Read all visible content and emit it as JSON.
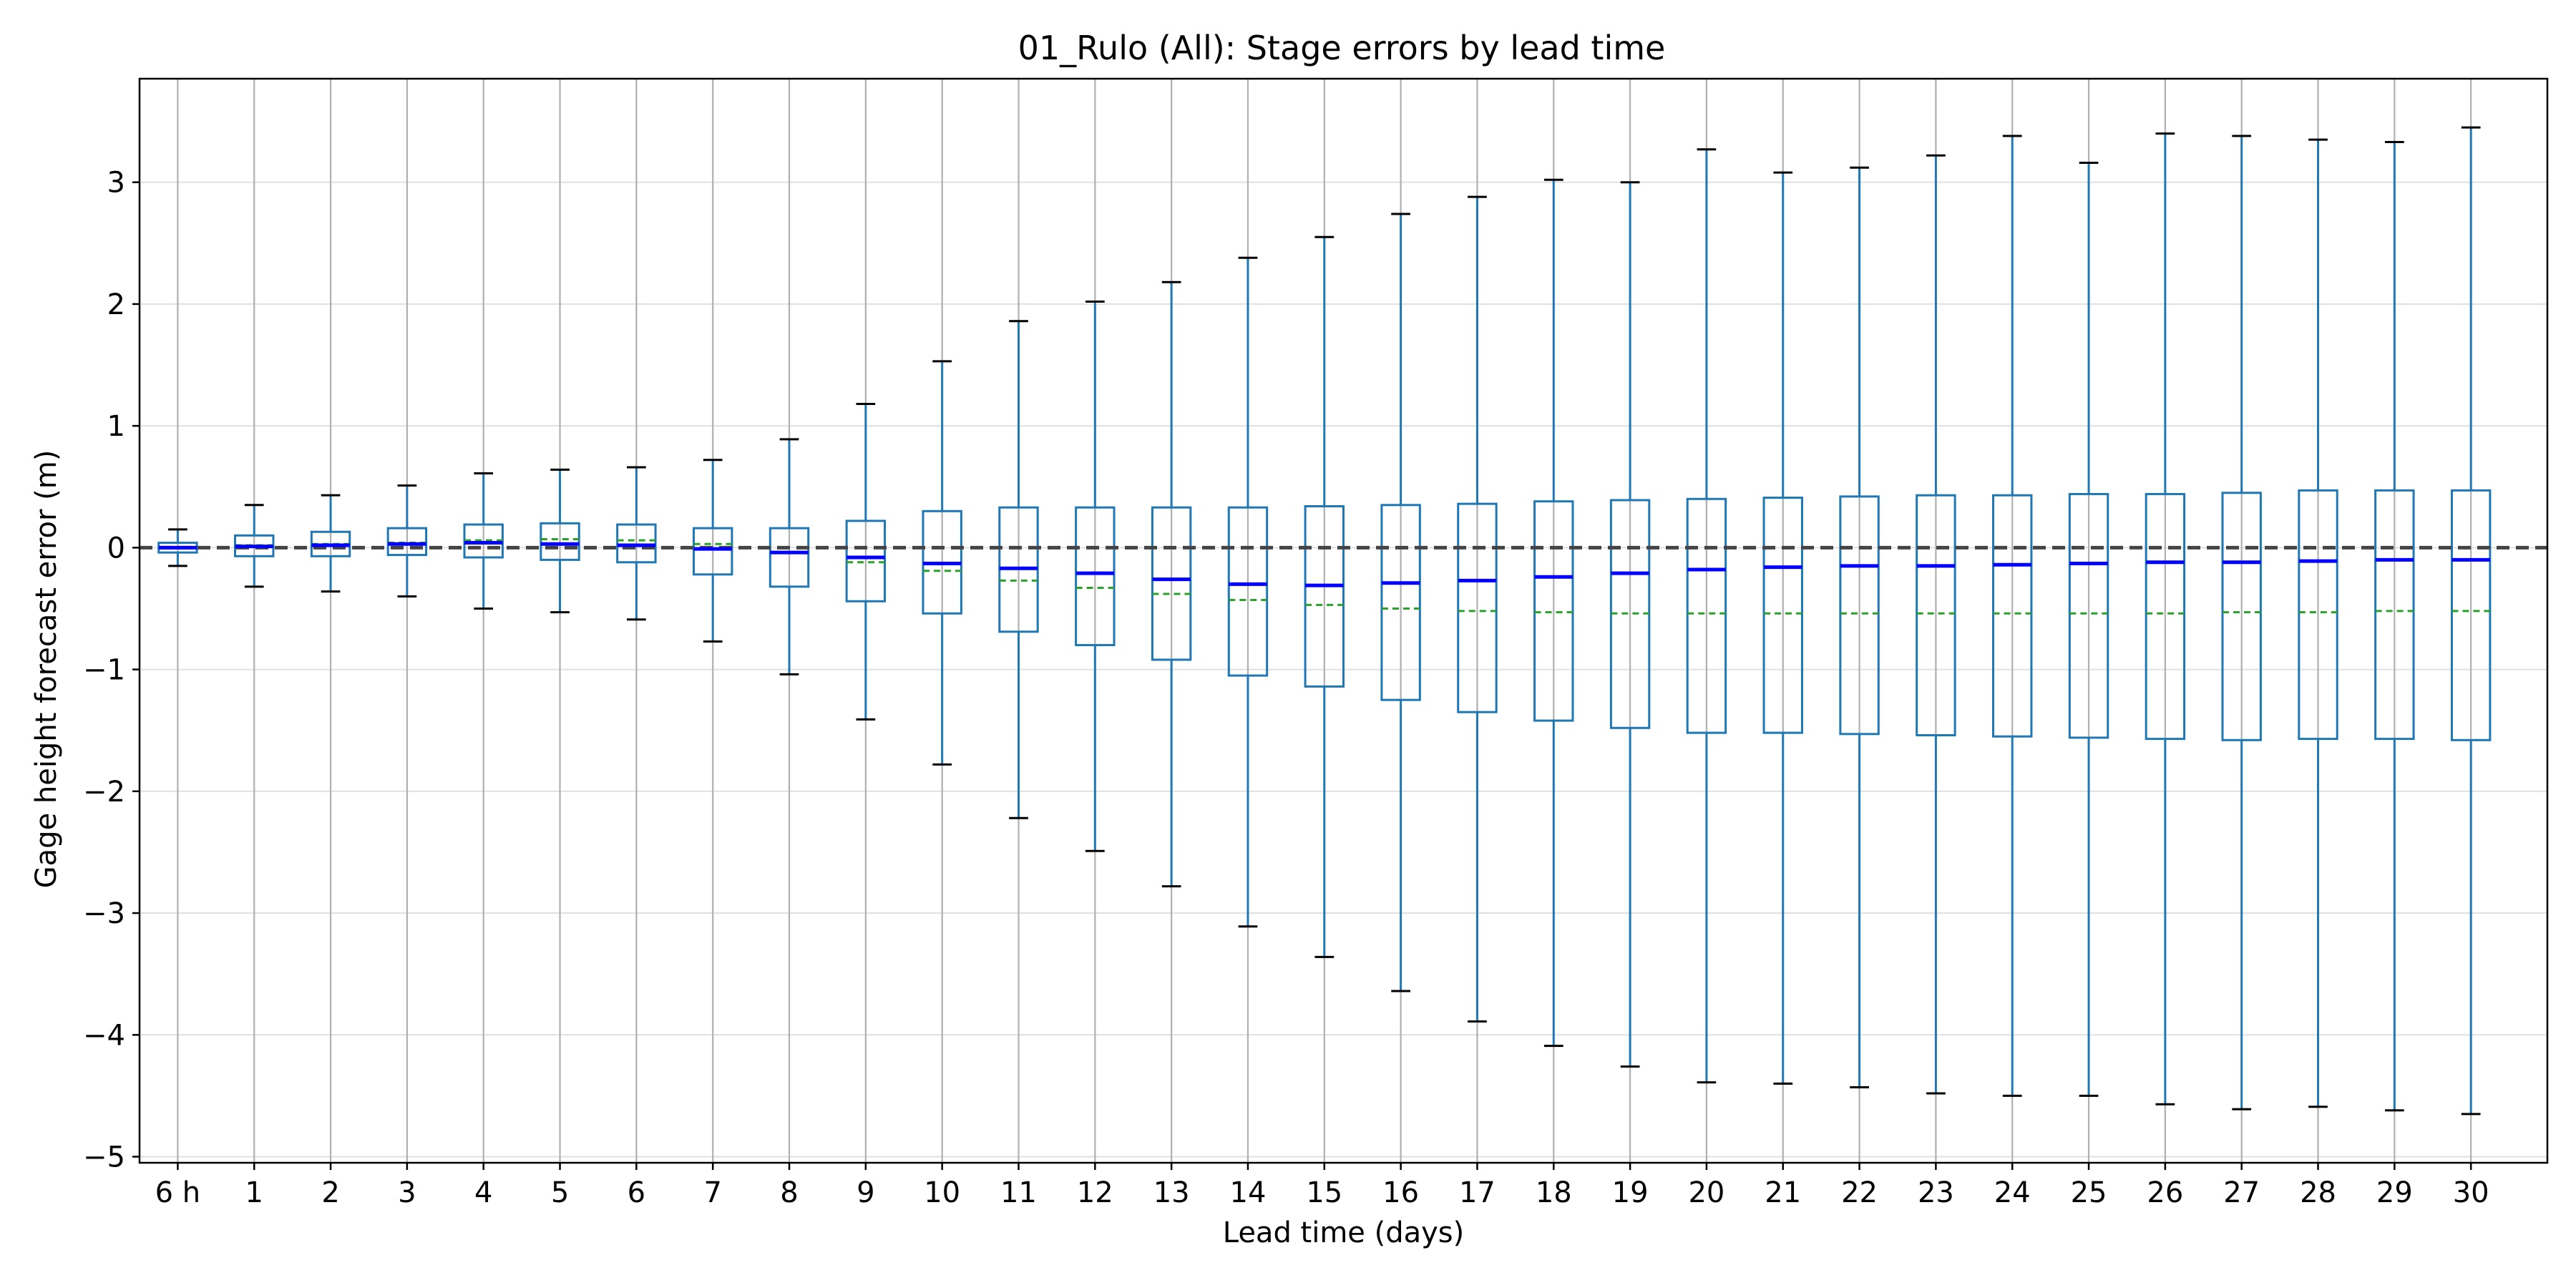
{
  "chart_data": {
    "type": "box",
    "title": "01_Rulo (All): Stage errors by lead time",
    "xlabel": "Lead time (days)",
    "ylabel": "Gage height forecast error (m)",
    "ylim": [
      -5.05,
      3.85
    ],
    "yticks": [
      3,
      2,
      1,
      0,
      -1,
      -2,
      -3,
      -4,
      -5
    ],
    "ytick_labels": [
      "3",
      "2",
      "1",
      "0",
      "−1",
      "−2",
      "−3",
      "−4",
      "−5"
    ],
    "categories": [
      "6 h",
      "1",
      "2",
      "3",
      "4",
      "5",
      "6",
      "7",
      "8",
      "9",
      "10",
      "11",
      "12",
      "13",
      "14",
      "15",
      "16",
      "17",
      "18",
      "19",
      "20",
      "21",
      "22",
      "23",
      "24",
      "25",
      "26",
      "27",
      "28",
      "29",
      "30"
    ],
    "reference_line": 0,
    "grid": "x major, y light",
    "colors": {
      "box": "#1f77b4",
      "whisker": "#1f77b4",
      "cap": "#000000",
      "median": "#0000ff",
      "mean": "#2ca02c",
      "reference": "#444444",
      "grid": "#b0b0b0"
    },
    "series": [
      {
        "stat": "whisker_high",
        "values": [
          0.15,
          0.35,
          0.43,
          0.51,
          0.61,
          0.64,
          0.66,
          0.72,
          0.89,
          1.18,
          1.53,
          1.86,
          2.02,
          2.18,
          2.38,
          2.55,
          2.74,
          2.88,
          3.02,
          3.0,
          3.27,
          3.08,
          3.12,
          3.22,
          3.38,
          3.16,
          3.4,
          3.38,
          3.35,
          3.33,
          3.45
        ]
      },
      {
        "stat": "q3",
        "values": [
          0.04,
          0.1,
          0.13,
          0.16,
          0.19,
          0.2,
          0.19,
          0.16,
          0.16,
          0.22,
          0.3,
          0.33,
          0.33,
          0.33,
          0.33,
          0.34,
          0.35,
          0.36,
          0.38,
          0.39,
          0.4,
          0.41,
          0.42,
          0.43,
          0.43,
          0.44,
          0.44,
          0.45,
          0.47,
          0.47,
          0.47
        ]
      },
      {
        "stat": "median",
        "values": [
          0.0,
          0.01,
          0.02,
          0.03,
          0.04,
          0.03,
          0.02,
          -0.01,
          -0.04,
          -0.08,
          -0.13,
          -0.17,
          -0.21,
          -0.26,
          -0.3,
          -0.31,
          -0.29,
          -0.27,
          -0.24,
          -0.21,
          -0.18,
          -0.16,
          -0.15,
          -0.15,
          -0.14,
          -0.13,
          -0.12,
          -0.12,
          -0.11,
          -0.1,
          -0.1
        ]
      },
      {
        "stat": "mean",
        "values": [
          0.0,
          0.02,
          0.03,
          0.04,
          0.06,
          0.07,
          0.06,
          0.03,
          -0.04,
          -0.12,
          -0.19,
          -0.27,
          -0.33,
          -0.38,
          -0.43,
          -0.47,
          -0.5,
          -0.52,
          -0.53,
          -0.54,
          -0.54,
          -0.54,
          -0.54,
          -0.54,
          -0.54,
          -0.54,
          -0.54,
          -0.53,
          -0.53,
          -0.52,
          -0.52
        ]
      },
      {
        "stat": "q1",
        "values": [
          -0.04,
          -0.07,
          -0.07,
          -0.06,
          -0.08,
          -0.1,
          -0.12,
          -0.22,
          -0.32,
          -0.44,
          -0.54,
          -0.69,
          -0.8,
          -0.92,
          -1.05,
          -1.14,
          -1.25,
          -1.35,
          -1.42,
          -1.48,
          -1.52,
          -1.52,
          -1.53,
          -1.54,
          -1.55,
          -1.56,
          -1.57,
          -1.58,
          -1.57,
          -1.57,
          -1.58
        ]
      },
      {
        "stat": "whisker_low",
        "values": [
          -0.15,
          -0.32,
          -0.36,
          -0.4,
          -0.5,
          -0.53,
          -0.59,
          -0.77,
          -1.04,
          -1.41,
          -1.78,
          -2.22,
          -2.49,
          -2.78,
          -3.11,
          -3.36,
          -3.64,
          -3.89,
          -4.09,
          -4.26,
          -4.39,
          -4.4,
          -4.43,
          -4.48,
          -4.5,
          -4.5,
          -4.57,
          -4.61,
          -4.59,
          -4.62,
          -4.65
        ]
      }
    ]
  }
}
